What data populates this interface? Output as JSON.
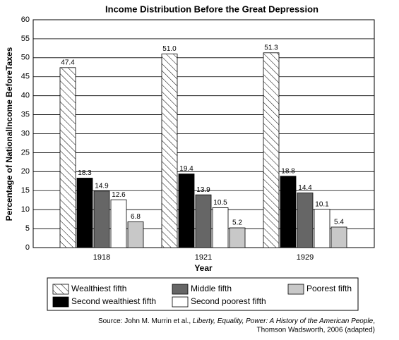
{
  "chart_data": {
    "type": "bar",
    "title": "Income Distribution Before the Great Depression",
    "x_label": "Year",
    "y_label": "Percentage of NationalIncome BeforeTaxes",
    "categories": [
      "1918",
      "1921",
      "1929"
    ],
    "series": [
      {
        "name": "Wealthiest fifth",
        "color": "#ffffff",
        "hatch": true,
        "values": [
          47.4,
          51.0,
          51.3
        ],
        "value_labels": [
          "47.4",
          "51.0",
          "51.3"
        ]
      },
      {
        "name": "Second wealthiest fifth",
        "color": "#000000",
        "values": [
          18.3,
          19.4,
          18.8
        ]
      },
      {
        "name": "Middle fifth",
        "color": "#666666",
        "values": [
          14.9,
          13.9,
          14.4
        ]
      },
      {
        "name": "Second poorest fifth",
        "color": "#ffffff",
        "values": [
          12.6,
          10.5,
          10.1
        ]
      },
      {
        "name": "Poorest fifth",
        "color": "#c8c8c8",
        "values": [
          6.8,
          5.2,
          5.4
        ]
      }
    ],
    "ylim": [
      0,
      60
    ],
    "yticks": [
      0,
      5,
      10,
      15,
      20,
      25,
      30,
      35,
      40,
      45,
      50,
      55,
      60
    ],
    "grid": true,
    "source": {
      "line1": "Source: John M. Murrin et al., ",
      "italic": "Liberty, Equality, Power: A History of the American People",
      "comma": ",",
      "line2": "Thomson Wadsworth, 2006 (adapted)"
    }
  }
}
